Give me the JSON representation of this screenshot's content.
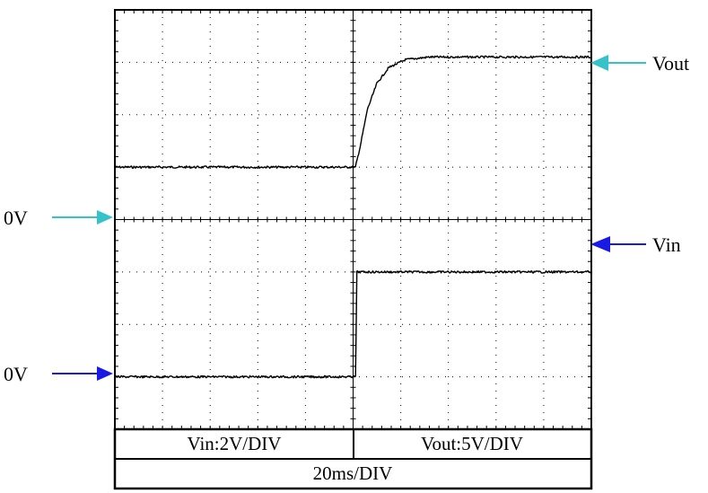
{
  "colors": {
    "vout_arrow": "#36c2c9",
    "vin_arrow": "#1a1ae6",
    "trace": "#000000",
    "grid": "#000000"
  },
  "labels": {
    "vout_zero": "0V",
    "vin_zero": "0V",
    "vout": "Vout",
    "vin": "Vin"
  },
  "settings": {
    "vin_scale": "Vin:2V/DIV",
    "vout_scale": "Vout:5V/DIV",
    "timebase": "20ms/DIV"
  },
  "chart_data": {
    "type": "line",
    "grid": true,
    "x_divisions": 10,
    "y_divisions": 8,
    "x_unit": "div",
    "y_unit": "div",
    "xlim": [
      0,
      10
    ],
    "ylim": [
      0,
      8
    ],
    "series": [
      {
        "name": "Vout",
        "ground_div": 5.0,
        "points": [
          [
            0,
            5.0
          ],
          [
            5.05,
            5.0
          ],
          [
            5.15,
            5.4
          ],
          [
            5.3,
            6.1
          ],
          [
            5.5,
            6.6
          ],
          [
            5.75,
            6.9
          ],
          [
            6.1,
            7.05
          ],
          [
            6.6,
            7.1
          ],
          [
            10,
            7.1
          ]
        ]
      },
      {
        "name": "Vin",
        "ground_div": 1.0,
        "points": [
          [
            0,
            1.0
          ],
          [
            5.05,
            1.0
          ],
          [
            5.08,
            3.0
          ],
          [
            10,
            3.0
          ]
        ]
      }
    ]
  }
}
